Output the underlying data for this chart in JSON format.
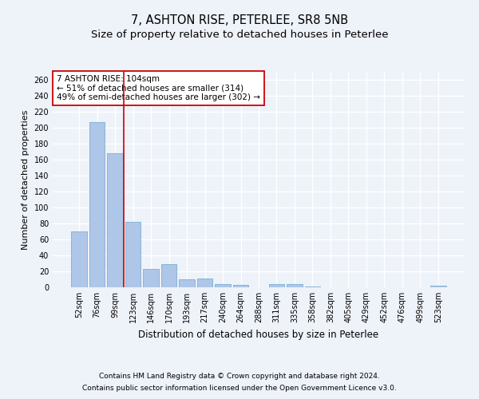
{
  "title1": "7, ASHTON RISE, PETERLEE, SR8 5NB",
  "title2": "Size of property relative to detached houses in Peterlee",
  "xlabel": "Distribution of detached houses by size in Peterlee",
  "ylabel": "Number of detached properties",
  "categories": [
    "52sqm",
    "76sqm",
    "99sqm",
    "123sqm",
    "146sqm",
    "170sqm",
    "193sqm",
    "217sqm",
    "240sqm",
    "264sqm",
    "288sqm",
    "311sqm",
    "335sqm",
    "358sqm",
    "382sqm",
    "405sqm",
    "429sqm",
    "452sqm",
    "476sqm",
    "499sqm",
    "523sqm"
  ],
  "values": [
    70,
    207,
    168,
    82,
    23,
    29,
    10,
    11,
    4,
    3,
    0,
    4,
    4,
    1,
    0,
    0,
    0,
    0,
    0,
    0,
    2
  ],
  "bar_color": "#aec6e8",
  "bar_edge_color": "#7aafd4",
  "vline_x": 2.5,
  "vline_color": "#cc0000",
  "annotation_text": "7 ASHTON RISE: 104sqm\n← 51% of detached houses are smaller (314)\n49% of semi-detached houses are larger (302) →",
  "annotation_box_color": "#ffffff",
  "annotation_box_edge": "#cc0000",
  "ylim": [
    0,
    270
  ],
  "yticks": [
    0,
    20,
    40,
    60,
    80,
    100,
    120,
    140,
    160,
    180,
    200,
    220,
    240,
    260
  ],
  "footnote1": "Contains HM Land Registry data © Crown copyright and database right 2024.",
  "footnote2": "Contains public sector information licensed under the Open Government Licence v3.0.",
  "background_color": "#eef2f9",
  "grid_color": "#ffffff",
  "title1_fontsize": 10.5,
  "title2_fontsize": 9.5,
  "xlabel_fontsize": 8.5,
  "ylabel_fontsize": 8,
  "tick_fontsize": 7,
  "annotation_fontsize": 7.5,
  "footnote_fontsize": 6.5
}
